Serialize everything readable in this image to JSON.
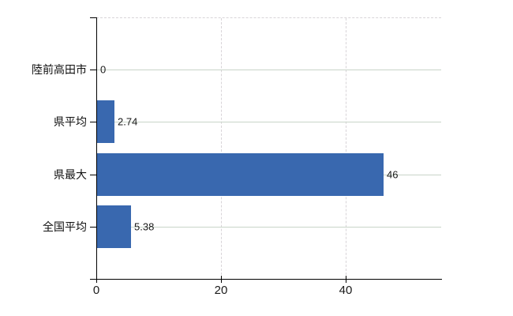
{
  "chart_data": {
    "type": "bar",
    "orientation": "horizontal",
    "title": "",
    "xlabel": "",
    "ylabel": "",
    "categories": [
      "陸前高田市",
      "県平均",
      "県最大",
      "全国平均"
    ],
    "values": [
      0,
      2.74,
      46,
      5.38
    ],
    "value_labels": [
      "0",
      "2.74",
      "46",
      "5.38"
    ],
    "x_axis": {
      "ticks": [
        0,
        20,
        40
      ],
      "tick_labels": [
        "0",
        "20",
        "40"
      ],
      "range": [
        0,
        55.3
      ]
    },
    "grid": true,
    "legend_position": "none",
    "colors": {
      "bar": "#3968af",
      "grid_horizontal": "#c8d4c8",
      "grid_vertical": "#d8d4d8",
      "axis": "#000000",
      "text": "#1a1a1a",
      "background": "#ffffff"
    }
  }
}
